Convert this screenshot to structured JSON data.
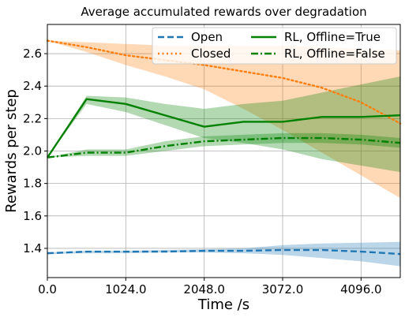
{
  "chart_data": {
    "type": "line",
    "title": "Average accumulated rewards over degradation",
    "xlabel": "Time /s",
    "ylabel": "Rewards per step",
    "xlim": [
      0,
      4608
    ],
    "ylim": [
      1.22,
      2.78
    ],
    "xticks": [
      0,
      1024,
      2048,
      3072,
      4096
    ],
    "xtick_labels": [
      "0.0",
      "1024.0",
      "2048.0",
      "3072.0",
      "4096.0"
    ],
    "yticks": [
      1.4,
      1.6,
      1.8,
      2.0,
      2.2,
      2.4,
      2.6
    ],
    "ytick_labels": [
      "1.4",
      "1.6",
      "1.8",
      "2.0",
      "2.2",
      "2.4",
      "2.6"
    ],
    "grid": true,
    "legend": {
      "placement": "top-right",
      "columns": 2
    },
    "x": [
      0,
      512,
      1024,
      1536,
      2048,
      2560,
      3072,
      3584,
      4096,
      4608
    ],
    "series": [
      {
        "name": "Open",
        "color": "#1f77b4",
        "style": "dashed",
        "values": [
          1.37,
          1.38,
          1.38,
          1.38,
          1.385,
          1.385,
          1.39,
          1.39,
          1.38,
          1.365
        ],
        "band_lower": [
          1.365,
          1.37,
          1.37,
          1.375,
          1.375,
          1.37,
          1.36,
          1.34,
          1.32,
          1.29
        ],
        "band_upper": [
          1.375,
          1.385,
          1.385,
          1.39,
          1.395,
          1.4,
          1.42,
          1.43,
          1.435,
          1.44
        ]
      },
      {
        "name": "Closed",
        "color": "#ff7f0e",
        "style": "dotted",
        "values": [
          2.68,
          2.64,
          2.59,
          2.56,
          2.53,
          2.49,
          2.45,
          2.39,
          2.3,
          2.17
        ],
        "band_lower": [
          2.68,
          2.61,
          2.53,
          2.46,
          2.38,
          2.26,
          2.13,
          1.99,
          1.85,
          1.71
        ],
        "band_upper": [
          2.68,
          2.67,
          2.66,
          2.65,
          2.65,
          2.65,
          2.65,
          2.64,
          2.63,
          2.62
        ]
      },
      {
        "name": "RL, Offline=True",
        "color": "#008000",
        "style": "solid",
        "values": [
          1.96,
          2.32,
          2.29,
          2.22,
          2.15,
          2.18,
          2.18,
          2.21,
          2.21,
          2.22
        ],
        "band_lower": [
          1.96,
          2.29,
          2.24,
          2.16,
          2.08,
          2.05,
          2.01,
          1.95,
          1.91,
          1.87
        ],
        "band_upper": [
          1.96,
          2.34,
          2.33,
          2.29,
          2.26,
          2.29,
          2.31,
          2.36,
          2.41,
          2.46
        ]
      },
      {
        "name": "RL, Offline=False",
        "color": "#008000",
        "style": "dashdot",
        "values": [
          1.96,
          1.99,
          1.99,
          2.03,
          2.06,
          2.07,
          2.08,
          2.08,
          2.07,
          2.05
        ],
        "band_lower": [
          1.96,
          1.97,
          1.97,
          2.0,
          2.03,
          2.04,
          2.05,
          2.05,
          2.04,
          2.02
        ],
        "band_upper": [
          1.96,
          2.01,
          2.01,
          2.06,
          2.09,
          2.1,
          2.11,
          2.11,
          2.1,
          2.08
        ]
      }
    ]
  }
}
